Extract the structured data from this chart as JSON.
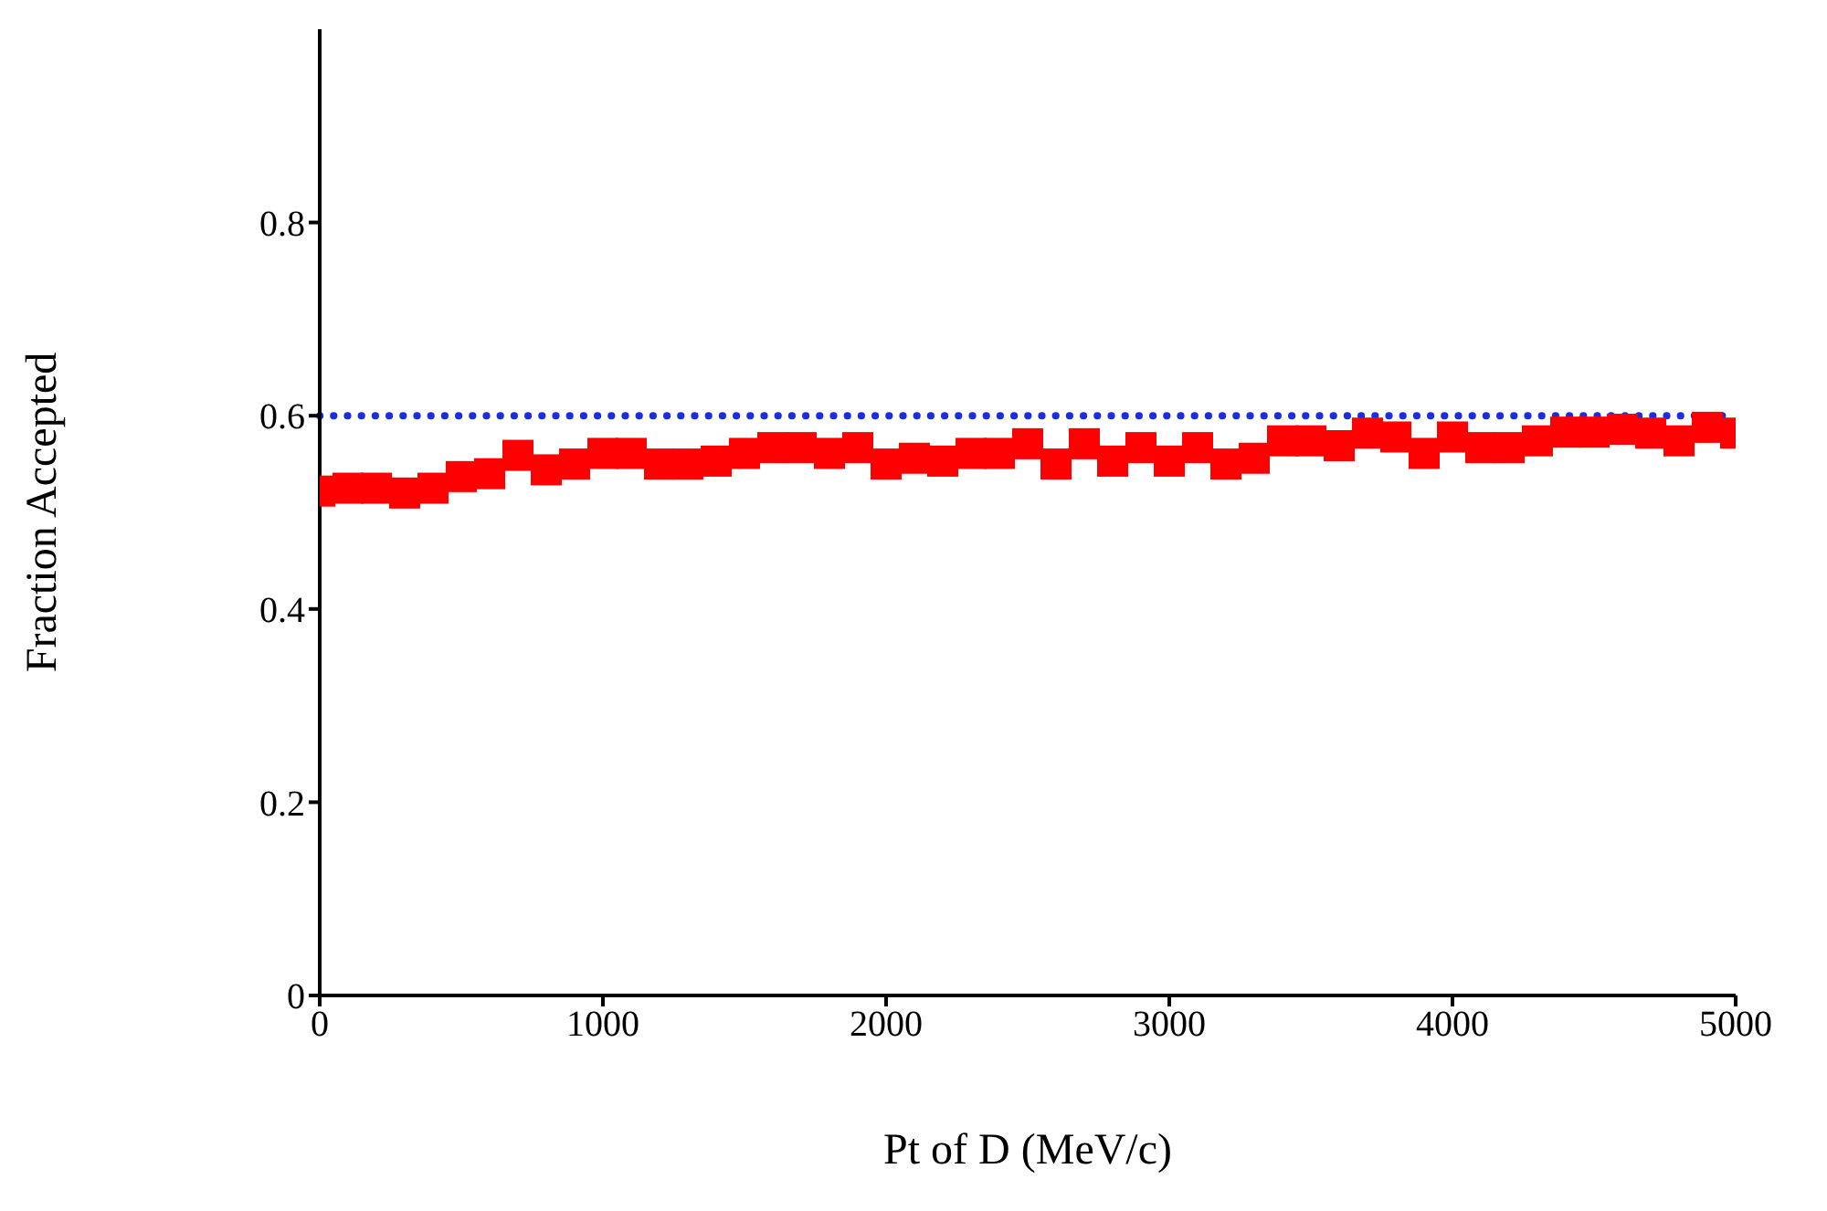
{
  "chart_data": {
    "type": "scatter",
    "xlabel": "Pt of D (MeV/c)",
    "ylabel": "Fraction Accepted",
    "x": [
      0,
      100,
      200,
      300,
      400,
      500,
      600,
      700,
      800,
      900,
      1000,
      1100,
      1200,
      1300,
      1400,
      1500,
      1600,
      1700,
      1800,
      1900,
      2000,
      2100,
      2200,
      2300,
      2400,
      2500,
      2600,
      2700,
      2800,
      2900,
      3000,
      3100,
      3200,
      3300,
      3400,
      3500,
      3600,
      3700,
      3800,
      3900,
      4000,
      4100,
      4200,
      4300,
      4400,
      4500,
      4600,
      4700,
      4800,
      4900,
      5000
    ],
    "series": [
      {
        "color": "#ff0000",
        "values": [
          0.522,
          0.525,
          0.525,
          0.52,
          0.525,
          0.537,
          0.54,
          0.559,
          0.544,
          0.55,
          0.561,
          0.561,
          0.55,
          0.55,
          0.553,
          0.561,
          0.567,
          0.567,
          0.561,
          0.567,
          0.55,
          0.556,
          0.553,
          0.561,
          0.561,
          0.571,
          0.55,
          0.571,
          0.553,
          0.567,
          0.553,
          0.567,
          0.55,
          0.556,
          0.574,
          0.574,
          0.569,
          0.582,
          0.578,
          0.561,
          0.578,
          0.567,
          0.567,
          0.574,
          0.583,
          0.583,
          0.586,
          0.582,
          0.574,
          0.588,
          0.582
        ]
      }
    ],
    "marker": "square",
    "xlim": [
      0,
      5000
    ],
    "xticks": [
      0,
      1000,
      2000,
      3000,
      4000,
      5000
    ],
    "ylim": [
      0,
      1
    ],
    "yticks": [
      0,
      0.2,
      0.4,
      0.6,
      0.8
    ],
    "ref_lines": [
      {
        "axis": "y",
        "value": 0.6,
        "color": "#1a2ee0",
        "line_style": "dotted"
      }
    ],
    "grid": false,
    "legend": false
  }
}
